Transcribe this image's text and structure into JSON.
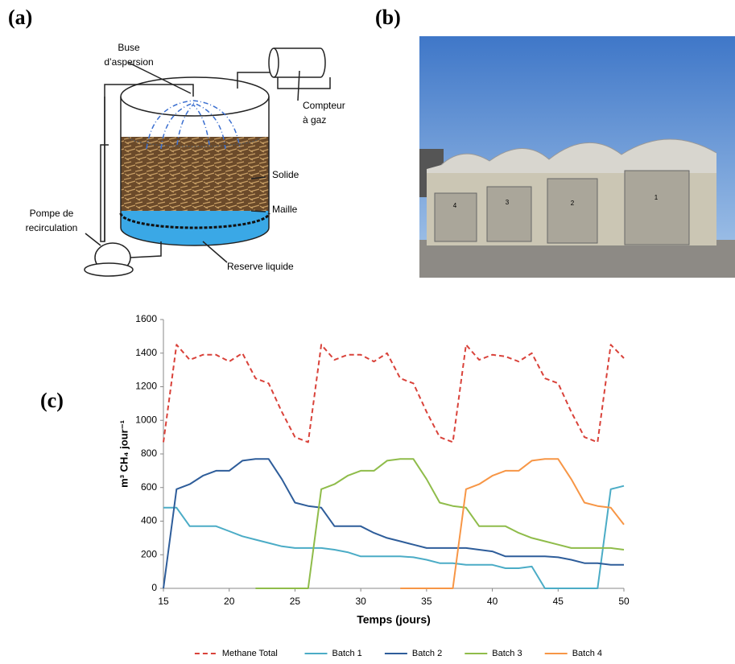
{
  "panels": {
    "a": "(a)",
    "b": "(b)",
    "c": "(c)"
  },
  "diagram": {
    "buse": [
      "Buse",
      "d’aspersion"
    ],
    "compteur": [
      "Compteur",
      "à gaz"
    ],
    "solide": "Solide",
    "maille": "Maille",
    "pompe": [
      "Pompe de",
      "recirculation"
    ],
    "reserve": "Reserve liquide"
  },
  "photo": {
    "doors": [
      "4",
      "3",
      "2",
      "1"
    ]
  },
  "chart_data": {
    "type": "line",
    "y_label": "m³ CH₄ jour⁻¹",
    "x_label": "Temps (jours)",
    "x": [
      15,
      16,
      17,
      18,
      19,
      20,
      21,
      22,
      23,
      24,
      25,
      26,
      27,
      28,
      29,
      30,
      31,
      32,
      33,
      34,
      35,
      36,
      37,
      38,
      39,
      40,
      41,
      42,
      43,
      44,
      45,
      46,
      47,
      48,
      49,
      50
    ],
    "xlim": [
      15,
      50
    ],
    "xticks": [
      15,
      20,
      25,
      30,
      35,
      40,
      45,
      50
    ],
    "ylim": [
      0,
      1600
    ],
    "yticks": [
      0,
      200,
      400,
      600,
      800,
      1000,
      1200,
      1400,
      1600
    ],
    "legend": "bottom",
    "series": [
      {
        "name": "Methane Total",
        "color": "#d9423a",
        "dashed": true,
        "values": [
          870,
          1450,
          1360,
          1390,
          1390,
          1350,
          1400,
          1250,
          1220,
          1050,
          900,
          870,
          1450,
          1360,
          1390,
          1390,
          1350,
          1400,
          1250,
          1220,
          1050,
          900,
          870,
          1450,
          1360,
          1390,
          1380,
          1350,
          1400,
          1250,
          1220,
          1050,
          900,
          870,
          1450,
          1370
        ]
      },
      {
        "name": "Batch 1",
        "color": "#4bacc6",
        "dashed": false,
        "values": [
          480,
          480,
          370,
          370,
          370,
          340,
          310,
          290,
          270,
          250,
          240,
          240,
          240,
          230,
          215,
          190,
          190,
          190,
          190,
          185,
          170,
          150,
          150,
          140,
          140,
          140,
          120,
          120,
          130,
          0,
          0,
          0,
          0,
          0,
          590,
          610
        ]
      },
      {
        "name": "Batch 2",
        "color": "#2e5d9a",
        "dashed": false,
        "values": [
          0,
          590,
          620,
          670,
          700,
          700,
          760,
          770,
          770,
          650,
          510,
          490,
          480,
          370,
          370,
          370,
          330,
          300,
          280,
          260,
          240,
          240,
          240,
          240,
          230,
          220,
          190,
          190,
          190,
          190,
          185,
          170,
          150,
          150,
          140,
          140
        ]
      },
      {
        "name": "Batch 3",
        "color": "#8fbc4a",
        "dashed": false,
        "values": [
          null,
          null,
          null,
          null,
          null,
          null,
          null,
          0,
          0,
          0,
          0,
          0,
          590,
          620,
          670,
          700,
          700,
          760,
          770,
          770,
          650,
          510,
          490,
          480,
          370,
          370,
          370,
          330,
          300,
          280,
          260,
          240,
          240,
          240,
          240,
          230
        ]
      },
      {
        "name": "Batch 4",
        "color": "#f79646",
        "dashed": false,
        "values": [
          null,
          null,
          null,
          null,
          null,
          null,
          null,
          null,
          null,
          null,
          null,
          null,
          null,
          null,
          null,
          null,
          null,
          null,
          0,
          0,
          0,
          0,
          0,
          590,
          620,
          670,
          700,
          700,
          760,
          770,
          770,
          650,
          510,
          490,
          480,
          380
        ]
      }
    ]
  }
}
